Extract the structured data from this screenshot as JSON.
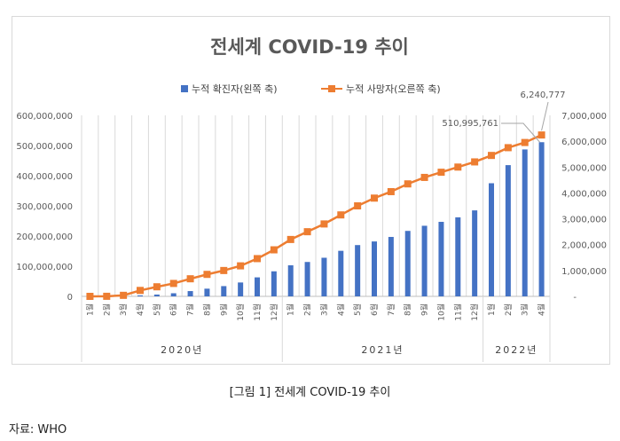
{
  "chart_data": {
    "type": "bar+line",
    "title": "전세계 COVID-19 추이",
    "categories": [
      "1월",
      "2월",
      "3월",
      "4월",
      "5월",
      "6월",
      "7월",
      "8월",
      "9월",
      "10월",
      "11월",
      "12월",
      "1월",
      "2월",
      "3월",
      "4월",
      "5월",
      "6월",
      "7월",
      "8월",
      "9월",
      "10월",
      "11월",
      "12월",
      "1월",
      "2월",
      "3월",
      "4월"
    ],
    "groups": [
      {
        "label": "2020년",
        "count": 12
      },
      {
        "label": "2021년",
        "count": 12
      },
      {
        "label": "2022년",
        "count": 4
      }
    ],
    "series": [
      {
        "name": "누적 확진자(왼쪽 축)",
        "type": "bar",
        "axis": "left",
        "color": "#4472c4",
        "values": [
          10000,
          80000,
          800000,
          3200000,
          6000000,
          10300000,
          17500000,
          25500000,
          34000000,
          46000000,
          63000000,
          83000000,
          103000000,
          114000000,
          128000000,
          151000000,
          170000000,
          182000000,
          197000000,
          217000000,
          234000000,
          247000000,
          262000000,
          285000000,
          375000000,
          435000000,
          487000000,
          510995761
        ]
      },
      {
        "name": "누적 사망자(오른쪽 축)",
        "type": "line",
        "axis": "right",
        "color": "#ed7d31",
        "values": [
          200,
          3000,
          40000,
          230000,
          370000,
          500000,
          680000,
          850000,
          1000000,
          1180000,
          1460000,
          1800000,
          2200000,
          2500000,
          2800000,
          3150000,
          3500000,
          3800000,
          4050000,
          4350000,
          4600000,
          4800000,
          5000000,
          5200000,
          5450000,
          5750000,
          5950000,
          6240777
        ]
      }
    ],
    "left_axis": {
      "ylim": [
        0,
        600000000
      ],
      "ticks": [
        "0",
        "100,000,000",
        "200,000,000",
        "300,000,000",
        "400,000,000",
        "500,000,000",
        "600,000,000"
      ]
    },
    "right_axis": {
      "ylim": [
        0,
        7000000
      ],
      "ticks": [
        "-",
        "1,000,000",
        "2,000,000",
        "3,000,000",
        "4,000,000",
        "5,000,000",
        "6,000,000",
        "7,000,000"
      ]
    },
    "annotations": [
      "510,995,761",
      "6,240,777"
    ],
    "legend_placement": "top-center",
    "grid": "vertical"
  },
  "caption": "[그림 1] 전세계 COVID-19 추이",
  "source": "자료: WHO"
}
